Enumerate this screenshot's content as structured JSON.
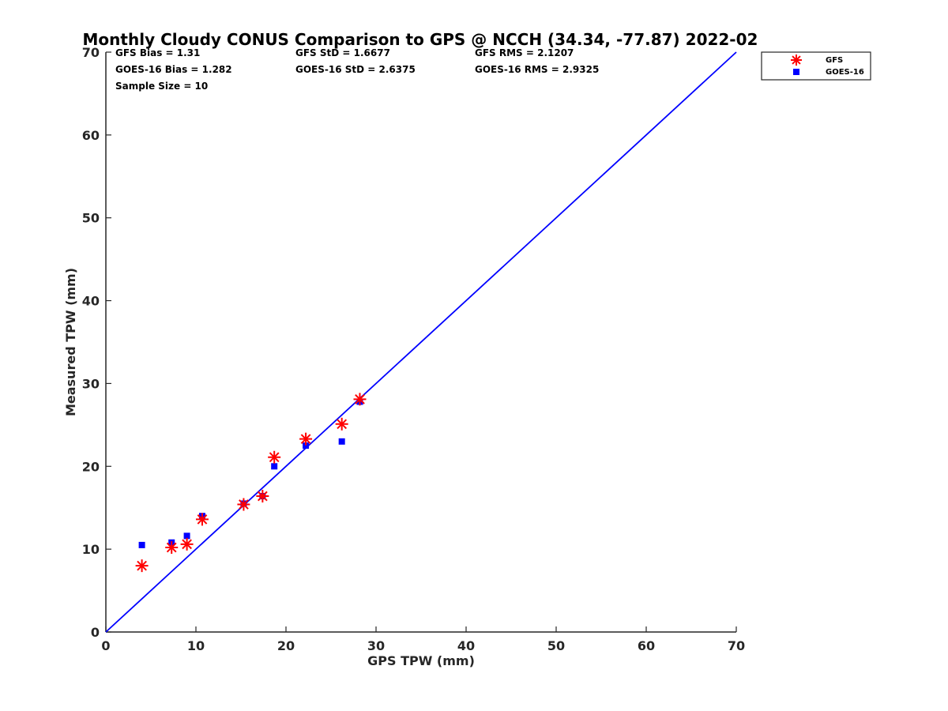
{
  "chart_data": {
    "type": "scatter",
    "title": "Monthly Cloudy CONUS Comparison to GPS @ NCCH (34.34, -77.87) 2022-02",
    "xlabel": "GPS TPW (mm)",
    "ylabel": "Measured TPW (mm)",
    "xlim": [
      0,
      70
    ],
    "ylim": [
      0,
      70
    ],
    "xticks": [
      "0",
      "10",
      "20",
      "30",
      "40",
      "50",
      "60",
      "70"
    ],
    "yticks": [
      "0",
      "10",
      "20",
      "30",
      "40",
      "50",
      "60",
      "70"
    ],
    "stats": {
      "gfs_bias": "GFS Bias = 1.31",
      "goes_bias": "GOES-16 Bias = 1.282",
      "sample_size": "Sample Size = 10",
      "gfs_std": "GFS StD = 1.6677",
      "goes_std": "GOES-16 StD = 2.6375",
      "gfs_rms": "GFS RMS = 2.1207",
      "goes_rms": "GOES-16 RMS = 2.9325"
    },
    "reference_line": {
      "name": "1:1 line",
      "x": [
        0,
        70
      ],
      "y": [
        0,
        70
      ],
      "color": "#0000ff"
    },
    "legend_position": "top-right outside",
    "series": [
      {
        "name": "GFS",
        "marker": "asterisk",
        "color": "#ff0000",
        "x": [
          4.0,
          7.3,
          9.0,
          10.7,
          15.3,
          17.4,
          18.7,
          22.2,
          26.2,
          28.2
        ],
        "y": [
          8.0,
          10.2,
          10.6,
          13.6,
          15.4,
          16.4,
          21.1,
          23.3,
          25.1,
          28.1
        ]
      },
      {
        "name": "GOES-16",
        "marker": "square",
        "color": "#0000ff",
        "x": [
          4.0,
          7.3,
          9.0,
          10.7,
          15.3,
          17.4,
          18.7,
          22.2,
          26.2,
          28.2
        ],
        "y": [
          10.5,
          10.8,
          11.6,
          14.0,
          15.5,
          16.4,
          20.0,
          22.5,
          23.0,
          27.8
        ]
      }
    ]
  }
}
